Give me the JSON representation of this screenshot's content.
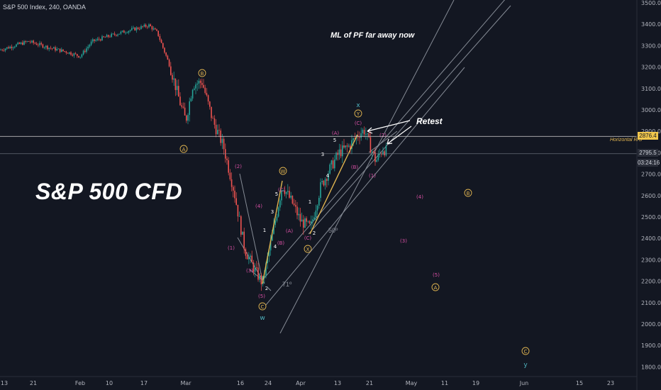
{
  "header": {
    "symbol_title": "S&P 500 Index, 240, OANDA"
  },
  "overlay": {
    "big_title": "S&P 500 CFD",
    "note_ml": "ML of PF far away now",
    "note_retest": "Retest",
    "horizontal_label": "Horizontal R/S",
    "angle_71": "71º",
    "angle_50": "50º"
  },
  "colors": {
    "background": "#131722",
    "candle_up": "#26a69a",
    "candle_down": "#ef5350",
    "wave_pink": "#d64fa3",
    "wave_gold": "#e0b450",
    "wave_cyan": "#4fb3bf",
    "fork_line": "#9aa0aa",
    "price_label_bg": "#f0c64c",
    "last_price_bg": "#1e222d"
  },
  "price_axis": {
    "ticks": [
      "3500.0",
      "3400.0",
      "3300.0",
      "3200.0",
      "3100.0",
      "3000.0",
      "2900.0",
      "2800.0",
      "2700.0",
      "2600.0",
      "2500.0",
      "2400.0",
      "2300.0",
      "2200.0",
      "2100.0",
      "2000.0",
      "1900.0",
      "1800.0"
    ],
    "horizontal_level": "2876.4",
    "last_price": "2795.5",
    "countdown": "03:24:16"
  },
  "time_axis": {
    "ticks": [
      "13",
      "21",
      "Feb",
      "10",
      "17",
      "Mar",
      "16",
      "24",
      "Apr",
      "13",
      "21",
      "May",
      "11",
      "19",
      "Jun",
      "15",
      "23"
    ]
  },
  "chart_data": {
    "type": "candlestick",
    "title": "S&P 500 Index, 240, OANDA",
    "ylim": [
      1760,
      3520
    ],
    "close_path": [
      [
        "13 Jan",
        3280
      ],
      [
        "21 Jan",
        3320
      ],
      [
        "Feb",
        3255
      ],
      [
        "10 Feb",
        3350
      ],
      [
        "17 Feb",
        3390
      ],
      [
        "Mar",
        2955
      ],
      [
        "16 Mar",
        2470
      ],
      [
        "24 Mar",
        2190
      ],
      [
        "Apr",
        2480
      ],
      [
        "13 Apr",
        2790
      ],
      [
        "21 Apr",
        2900
      ],
      [
        "27 Apr",
        2795.5
      ]
    ],
    "horizontal_level": 2876.4,
    "last_price": 2795.5,
    "wave_labels": {
      "circled_gold": [
        "A",
        "B",
        "W",
        "X",
        "Y",
        "C",
        "B",
        "A",
        "C"
      ],
      "pink": [
        "(1)",
        "(2)",
        "(3)",
        "(4)",
        "(5)",
        "(A)",
        "(B)",
        "(C)",
        "(A)",
        "(B)",
        "(C)",
        "(1)",
        "(2)",
        "(3)",
        "(4)",
        "(5)"
      ],
      "white": [
        "1",
        "2",
        "3",
        "4",
        "5",
        "1",
        "2",
        "3",
        "4",
        "5"
      ],
      "cyan": [
        "w",
        "x",
        "y"
      ]
    }
  }
}
